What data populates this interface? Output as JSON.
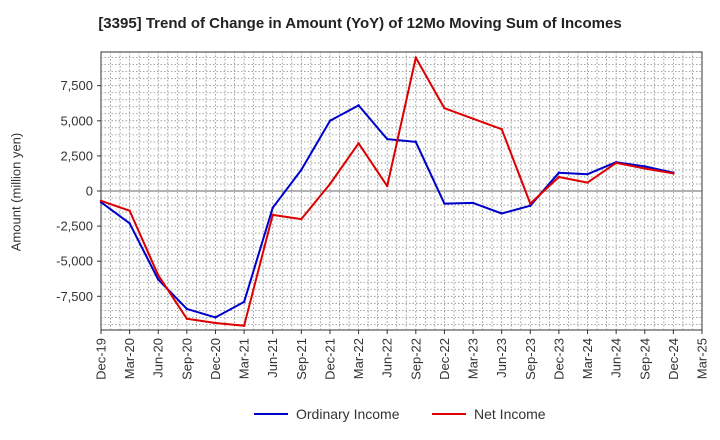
{
  "chart_data": {
    "type": "line",
    "title": "[3395]  Trend of Change in Amount (YoY) of 12Mo Moving Sum of Incomes",
    "xlabel": "",
    "ylabel": "Amount (million yen)",
    "categories": [
      "Dec-19",
      "Mar-20",
      "Jun-20",
      "Sep-20",
      "Dec-20",
      "Mar-21",
      "Jun-21",
      "Sep-21",
      "Dec-21",
      "Mar-22",
      "Jun-22",
      "Sep-22",
      "Dec-22",
      "Mar-23",
      "Jun-23",
      "Sep-23",
      "Dec-23",
      "Mar-24",
      "Jun-24",
      "Sep-24",
      "Dec-24",
      "Mar-25"
    ],
    "yticks": [
      -7500,
      -5000,
      -2500,
      0,
      2500,
      5000,
      7500
    ],
    "ytick_labels": [
      "-7,500",
      "-5,000",
      "-2,500",
      "0",
      "2,500",
      "5,000",
      "7,500"
    ],
    "ylim": [
      -9900,
      9900
    ],
    "grid": true,
    "legend_position": "bottom-center",
    "series": [
      {
        "name": "Ordinary Income",
        "color": "#0000cc",
        "values": [
          -800,
          -2300,
          -6300,
          -8400,
          -9000,
          -7900,
          -1200,
          1500,
          5000,
          6100,
          3700,
          3500,
          -900,
          -850,
          -1600,
          -1050,
          1300,
          1200,
          2050,
          1750,
          1300,
          null
        ]
      },
      {
        "name": "Net Income",
        "color": "#dd0000",
        "values": [
          -700,
          -1400,
          -6000,
          -9100,
          -9400,
          -9600,
          -1700,
          -2000,
          500,
          3400,
          350,
          9500,
          5900,
          5150,
          4400,
          -900,
          1000,
          600,
          2000,
          1600,
          1250,
          null
        ]
      }
    ]
  }
}
